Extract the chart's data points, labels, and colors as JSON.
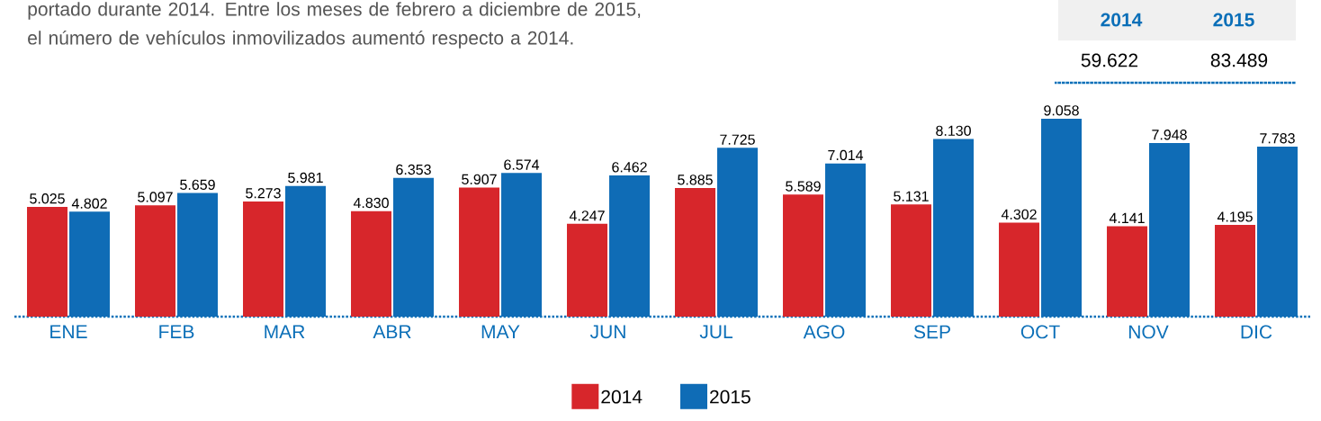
{
  "chart_data": {
    "type": "bar",
    "categories": [
      "ENE",
      "FEB",
      "MAR",
      "ABR",
      "MAY",
      "JUN",
      "JUL",
      "AGO",
      "SEP",
      "OCT",
      "NOV",
      "DIC"
    ],
    "series": [
      {
        "name": "2014",
        "color": "#d7262b",
        "values": [
          5025,
          5097,
          5273,
          4830,
          5907,
          4247,
          5885,
          5589,
          5131,
          4302,
          4141,
          4195
        ],
        "value_labels": [
          "5.025",
          "5.097",
          "5.273",
          "4.830",
          "5.907",
          "4.247",
          "5.885",
          "5.589",
          "5.131",
          "4.302",
          "4.141",
          "4.195"
        ]
      },
      {
        "name": "2015",
        "color": "#0f6cb6",
        "values": [
          4802,
          5659,
          5981,
          6353,
          6574,
          6462,
          7725,
          7014,
          8130,
          9058,
          7948,
          7783
        ],
        "value_labels": [
          "4.802",
          "5.659",
          "5.981",
          "6.353",
          "6.574",
          "6.462",
          "7.725",
          "7.014",
          "8.130",
          "9.058",
          "7.948",
          "7.783"
        ]
      }
    ],
    "legend": "bottom",
    "annotations": [
      "portado durante 2014. Entre los meses de febrero a diciembre de 2015, el número de vehículos inmovilizados aumentó respecto a 2014.",
      "2014",
      "2015",
      "59.622",
      "83.489"
    ]
  }
}
